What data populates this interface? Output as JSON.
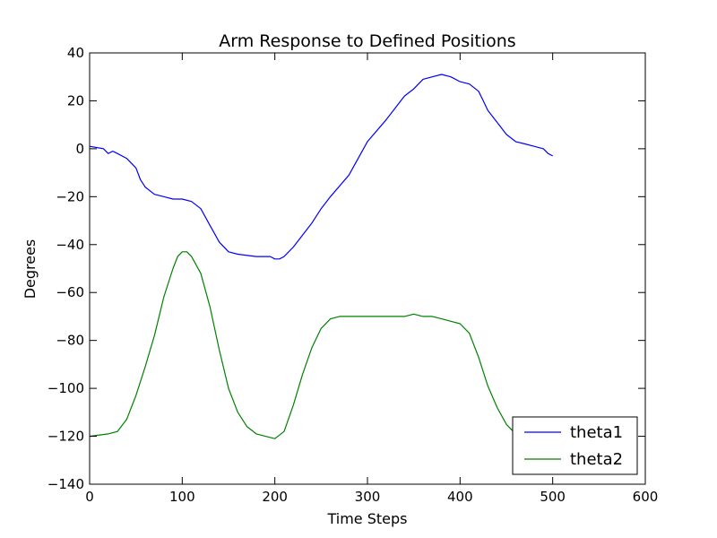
{
  "chart_data": {
    "type": "line",
    "title": "Arm Response to Defined Positions",
    "xlabel": "Time Steps",
    "ylabel": "Degrees",
    "xlim": [
      0,
      600
    ],
    "ylim": [
      -140,
      40
    ],
    "xticks": [
      0,
      100,
      200,
      300,
      400,
      500,
      600
    ],
    "yticks": [
      -140,
      -120,
      -100,
      -80,
      -60,
      -40,
      -20,
      0,
      20,
      40
    ],
    "grid": false,
    "legend": "lower-right",
    "series": [
      {
        "name": "theta1",
        "color": "#0000ff",
        "x": [
          0,
          15,
          20,
          25,
          30,
          40,
          50,
          55,
          60,
          70,
          80,
          90,
          100,
          110,
          120,
          130,
          140,
          150,
          160,
          180,
          195,
          200,
          205,
          210,
          220,
          240,
          250,
          260,
          280,
          300,
          320,
          340,
          350,
          360,
          370,
          380,
          390,
          400,
          410,
          420,
          425,
          430,
          440,
          450,
          460,
          470,
          480,
          490,
          495,
          500
        ],
        "values": [
          1,
          0,
          -2,
          -1,
          -2,
          -4,
          -8,
          -13,
          -16,
          -19,
          -20,
          -21,
          -21,
          -22,
          -25,
          -32,
          -39,
          -43,
          -44,
          -45,
          -45,
          -46,
          -46,
          -45,
          -41,
          -31,
          -25,
          -20,
          -11,
          3,
          12,
          22,
          25,
          29,
          30,
          31,
          30,
          28,
          27,
          24,
          20,
          16,
          11,
          6,
          3,
          2,
          1,
          0,
          -2,
          -3
        ]
      },
      {
        "name": "theta2",
        "color": "#008000",
        "x": [
          0,
          20,
          30,
          40,
          50,
          60,
          70,
          80,
          90,
          95,
          100,
          105,
          110,
          120,
          130,
          140,
          150,
          160,
          170,
          180,
          190,
          200,
          210,
          220,
          230,
          240,
          250,
          260,
          270,
          280,
          300,
          320,
          340,
          350,
          360,
          370,
          380,
          390,
          400,
          410,
          420,
          430,
          440,
          450,
          460,
          470,
          480,
          490,
          500
        ],
        "values": [
          -120,
          -119,
          -118,
          -113,
          -103,
          -91,
          -78,
          -62,
          -50,
          -45,
          -43,
          -43,
          -45,
          -52,
          -66,
          -84,
          -100,
          -110,
          -116,
          -119,
          -120,
          -121,
          -118,
          -107,
          -94,
          -83,
          -75,
          -71,
          -70,
          -70,
          -70,
          -70,
          -70,
          -69,
          -70,
          -70,
          -71,
          -72,
          -73,
          -77,
          -87,
          -99,
          -108,
          -115,
          -119,
          -119,
          -118,
          -116,
          -113
        ]
      }
    ]
  }
}
